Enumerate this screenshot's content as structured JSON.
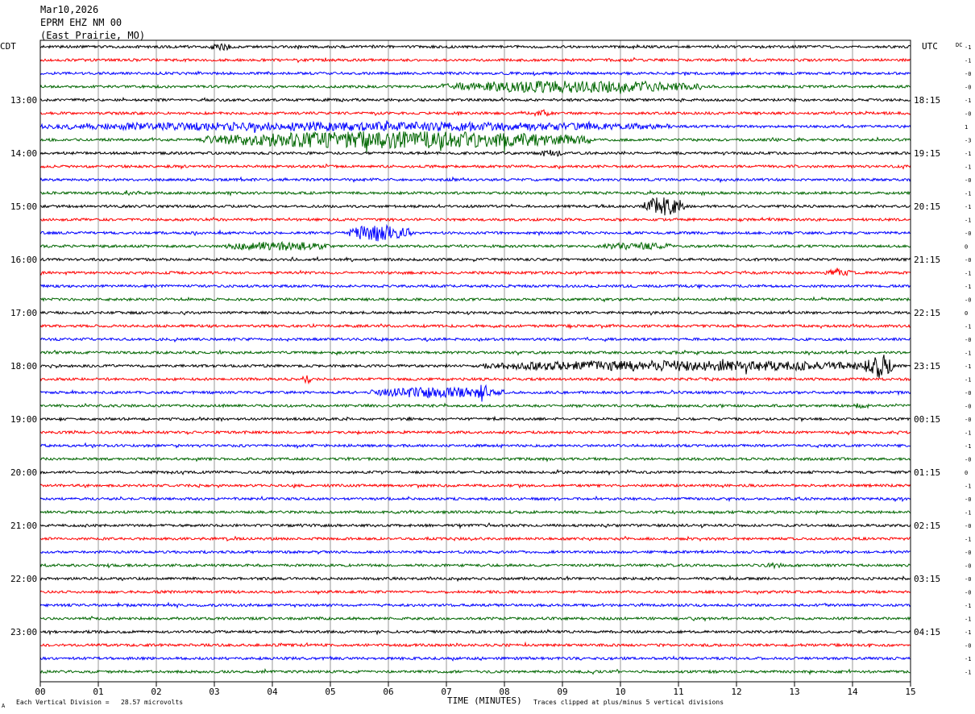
{
  "header": {
    "date": "Mar10,2026",
    "station": "EPRM EHZ NM 00",
    "location": "(East Prairie, MO)"
  },
  "chart_data": {
    "type": "line",
    "title": "",
    "xlabel": "TIME (MINUTES)",
    "x_ticks": [
      "00",
      "01",
      "02",
      "03",
      "04",
      "05",
      "06",
      "07",
      "08",
      "09",
      "10",
      "11",
      "12",
      "13",
      "14",
      "15"
    ],
    "xlim": [
      0,
      15
    ],
    "left_axis_label": "CDT",
    "right_axis_label": "UTC",
    "dc_label": "DC",
    "left_hours": [
      "13:00",
      "14:00",
      "15:00",
      "16:00",
      "17:00",
      "18:00",
      "19:00",
      "20:00",
      "21:00",
      "22:00",
      "23:00"
    ],
    "right_hours": [
      "18:15",
      "19:15",
      "20:15",
      "21:15",
      "22:15",
      "23:15",
      "00:15",
      "01:15",
      "02:15",
      "03:15",
      "04:15"
    ],
    "trace_colors": [
      "#000000",
      "#ff0000",
      "#0000ff",
      "#006600"
    ],
    "trace_count": 48,
    "dc_offsets": [
      "-1",
      "-1",
      "-0",
      "-0",
      "-1",
      "-0",
      "1",
      "-3",
      "-1",
      "-1",
      "-0",
      "-1",
      "-1",
      "-1",
      "-0",
      "0",
      "-0",
      "-1",
      "-1",
      "-0",
      "0",
      "-1",
      "-0",
      "-1",
      "-1",
      "-1",
      "-0",
      "-0",
      "-0",
      "-1",
      "-1",
      "-0",
      "0",
      "-1",
      "-0",
      "-1",
      "-0",
      "-1",
      "-0",
      "-0",
      "-0",
      "-0",
      "-1",
      "-1",
      "-1",
      "-0",
      "-1",
      "-1"
    ],
    "events": [
      {
        "trace": 0,
        "start_min": 2.9,
        "end_min": 3.3,
        "amp": 3
      },
      {
        "trace": 3,
        "start_min": 6.9,
        "end_min": 11.4,
        "amp": 6
      },
      {
        "trace": 5,
        "start_min": 8.5,
        "end_min": 8.8,
        "amp": 3
      },
      {
        "trace": 6,
        "start_min": 0.0,
        "end_min": 10.9,
        "amp": 4
      },
      {
        "trace": 7,
        "start_min": 2.8,
        "end_min": 9.5,
        "amp": 9
      },
      {
        "trace": 8,
        "start_min": 8.6,
        "end_min": 9.0,
        "amp": 3
      },
      {
        "trace": 11,
        "start_min": 1.4,
        "end_min": 1.7,
        "amp": 2
      },
      {
        "trace": 12,
        "start_min": 10.4,
        "end_min": 11.1,
        "amp": 11
      },
      {
        "trace": 14,
        "start_min": 5.3,
        "end_min": 6.4,
        "amp": 9
      },
      {
        "trace": 15,
        "start_min": 3.2,
        "end_min": 5.0,
        "amp": 4
      },
      {
        "trace": 15,
        "start_min": 9.7,
        "end_min": 10.9,
        "amp": 3
      },
      {
        "trace": 17,
        "start_min": 13.5,
        "end_min": 14.0,
        "amp": 3
      },
      {
        "trace": 24,
        "start_min": 7.6,
        "end_min": 14.6,
        "amp": 5
      },
      {
        "trace": 24,
        "start_min": 14.2,
        "end_min": 14.7,
        "amp": 14
      },
      {
        "trace": 25,
        "start_min": 4.5,
        "end_min": 4.7,
        "amp": 4
      },
      {
        "trace": 26,
        "start_min": 5.7,
        "end_min": 8.0,
        "amp": 5
      },
      {
        "trace": 26,
        "start_min": 7.55,
        "end_min": 7.7,
        "amp": 12
      },
      {
        "trace": 27,
        "start_min": 14.0,
        "end_min": 14.3,
        "amp": 2
      },
      {
        "trace": 39,
        "start_min": 12.5,
        "end_min": 12.8,
        "amp": 2
      }
    ]
  },
  "footer": {
    "vertical_division": "Each Vertical Division =   28.57 microvolts",
    "clip_note": "Traces clipped at plus/minus 5 vertical divisions",
    "corner_mark": "A"
  }
}
